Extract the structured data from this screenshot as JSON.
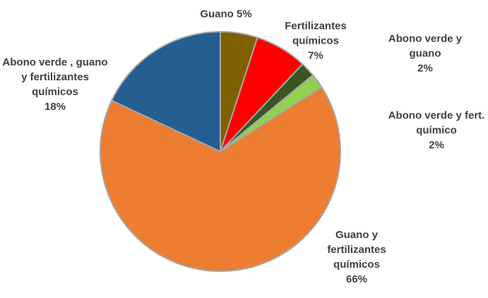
{
  "chart_data": {
    "type": "pie",
    "categories": [
      "Guano",
      "Fertilizantes químicos",
      "Abono verde y guano",
      "Abono verde y fert. químico",
      "Guano y fertilizantes químicos",
      "Abono verde , guano y fertilizantes químicos"
    ],
    "values": [
      5,
      7,
      2,
      2,
      66,
      18
    ],
    "value_labels": [
      "5%",
      "7%",
      "2%",
      "2%",
      "66%",
      "18%"
    ],
    "colors": [
      "#7f6000",
      "#ff0000",
      "#375623",
      "#92d050",
      "#ed7d31",
      "#255e91"
    ]
  }
}
